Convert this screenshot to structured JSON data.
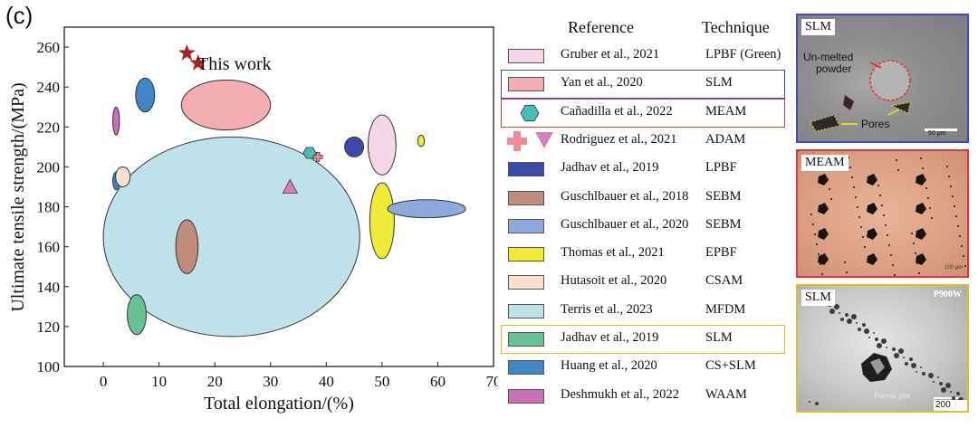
{
  "panel_label": "(c)",
  "chart_data": {
    "type": "scatter",
    "xlabel": "Total elongation/(%)",
    "ylabel": "Ultimate tensile strength/(MPa)",
    "xlim": [
      -7,
      70
    ],
    "ylim": [
      100,
      270
    ],
    "xticks": [
      0,
      10,
      20,
      30,
      40,
      50,
      60,
      70
    ],
    "yticks": [
      100,
      120,
      140,
      160,
      180,
      200,
      220,
      240,
      260
    ],
    "grid": false,
    "this_work_label": "This work",
    "this_work_points": [
      {
        "x": 15,
        "y": 257
      },
      {
        "x": 17,
        "y": 252
      }
    ],
    "regions": [
      {
        "ref": "Terris et al., 2023",
        "shape": "ellipse",
        "cx": 23,
        "cy": 165,
        "rx": 23,
        "ry": 50,
        "color": "#bfe2ea"
      },
      {
        "ref": "Yan et al., 2020",
        "shape": "ellipse",
        "cx": 22,
        "cy": 231,
        "rx": 8,
        "ry": 12.5,
        "color": "#f4aeb2"
      },
      {
        "ref": "Gruber et al., 2021",
        "shape": "ellipse",
        "cx": 50,
        "cy": 211,
        "rx": 2.5,
        "ry": 15,
        "color": "#f5d6e8"
      },
      {
        "ref": "Thomas et al., 2021",
        "shape": "ellipse",
        "cx": 50,
        "cy": 173,
        "rx": 2.2,
        "ry": 19,
        "color": "#f0ea38"
      },
      {
        "ref": "Guschlbauer et al., 2020",
        "shape": "ellipse",
        "cx": 58,
        "cy": 179,
        "rx": 7,
        "ry": 4.5,
        "color": "#8ea9de"
      },
      {
        "ref": "Guschlbauer et al., 2018",
        "shape": "ellipse",
        "cx": 15,
        "cy": 160,
        "rx": 2,
        "ry": 13.5,
        "color": "#c08c7c"
      },
      {
        "ref": "Jadhav et al., 2019 (SLM)",
        "shape": "ellipse",
        "cx": 6,
        "cy": 126,
        "rx": 1.7,
        "ry": 10,
        "color": "#67c194"
      },
      {
        "ref": "Huang et al., 2020 (1)",
        "shape": "ellipse",
        "cx": 7.5,
        "cy": 236,
        "rx": 1.7,
        "ry": 8.5,
        "color": "#3f86c5"
      },
      {
        "ref": "Huang et al., 2020 (2)",
        "shape": "ellipse",
        "cx": 2.3,
        "cy": 193,
        "rx": 0.6,
        "ry": 4.5,
        "color": "#3f86c5"
      },
      {
        "ref": "Hutasoit et al., 2020",
        "shape": "ellipse",
        "cx": 3.5,
        "cy": 195,
        "rx": 1.3,
        "ry": 5,
        "color": "#fbe0cf"
      },
      {
        "ref": "Deshmukh et al., 2022",
        "shape": "ellipse",
        "cx": 2.3,
        "cy": 223,
        "rx": 0.6,
        "ry": 7,
        "color": "#cc6fb6"
      },
      {
        "ref": "Jadhav et al., 2019 (LPBF)",
        "shape": "ellipse",
        "cx": 45,
        "cy": 210,
        "rx": 1.7,
        "ry": 5,
        "color": "#3b4aa8"
      },
      {
        "ref": "Thomas et al., 2021 (2)",
        "shape": "ellipse",
        "cx": 57,
        "cy": 213,
        "rx": 0.6,
        "ry": 2.8,
        "color": "#f0ea38"
      }
    ],
    "markers": [
      {
        "ref": "Cañadilla et al., 2022",
        "shape": "hexagon",
        "x": 37,
        "y": 207,
        "color": "#46bfb9"
      },
      {
        "ref": "Rodriguez et al., 2021",
        "shape": "cross",
        "x": 38.5,
        "y": 205,
        "color": "#ef8c9a"
      },
      {
        "ref": "Rodriguez et al., 2021",
        "shape": "triangle",
        "x": 33.5,
        "y": 190,
        "color": "#d67fb8"
      }
    ]
  },
  "legend": {
    "reference_header": "Reference",
    "technique_header": "Technique",
    "items": [
      {
        "ref": "Gruber et al., 2021",
        "tech": "LPBF (Green)",
        "swatch": "rect",
        "color": "#f5d6e8",
        "frame": ""
      },
      {
        "ref": "Yan et al., 2020",
        "tech": "SLM",
        "swatch": "rect",
        "color": "#f4aeb2",
        "frame": "#3a4bd0"
      },
      {
        "ref": "Cañadilla et al., 2022",
        "tech": "MEAM",
        "swatch": "hexagon",
        "color": "#46bfb9",
        "frame": "#e0343a"
      },
      {
        "ref": "Rodriguez et al., 2021",
        "tech": "ADAM",
        "swatch": "cross-triangle",
        "color": "#ef8c9a",
        "color2": "#d67fb8",
        "frame": ""
      },
      {
        "ref": "Jadhav et al., 2019",
        "tech": "LPBF",
        "swatch": "rect",
        "color": "#3b4aa8",
        "frame": ""
      },
      {
        "ref": "Guschlbauer et al., 2018",
        "tech": "SEBM",
        "swatch": "rect",
        "color": "#c08c7c",
        "frame": ""
      },
      {
        "ref": "Guschlbauer et al., 2020",
        "tech": "SEBM",
        "swatch": "rect",
        "color": "#8ea9de",
        "frame": ""
      },
      {
        "ref": "Thomas et al., 2021",
        "tech": "EPBF",
        "swatch": "rect",
        "color": "#f0ea38",
        "frame": ""
      },
      {
        "ref": "Hutasoit et al., 2020",
        "tech": "CSAM",
        "swatch": "rect",
        "color": "#fbe0cf",
        "frame": ""
      },
      {
        "ref": "Terris et al., 2023",
        "tech": "MFDM",
        "swatch": "rect",
        "color": "#bfe2ea",
        "frame": ""
      },
      {
        "ref": "Jadhav et al., 2019",
        "tech": "SLM",
        "swatch": "rect",
        "color": "#67c194",
        "frame": "#e8b830"
      },
      {
        "ref": "Huang et al., 2020",
        "tech": "CS+SLM",
        "swatch": "rect",
        "color": "#3f86c5",
        "frame": ""
      },
      {
        "ref": "Deshmukh et al., 2022",
        "tech": "WAAM",
        "swatch": "rect",
        "color": "#cc6fb6",
        "frame": ""
      }
    ]
  },
  "micrographs": [
    {
      "tag": "SLM",
      "frame": "#3a4bd0",
      "annotations": [
        "Un-melted",
        "powder",
        "Pores"
      ],
      "scale": "50 μm"
    },
    {
      "tag": "MEAM",
      "frame": "#e0343a",
      "scale": "100 μm"
    },
    {
      "tag": "SLM",
      "corner_tag": "P900W",
      "frame": "#e8b830",
      "caption": "Porous pits",
      "scale": "200 μm"
    }
  ]
}
